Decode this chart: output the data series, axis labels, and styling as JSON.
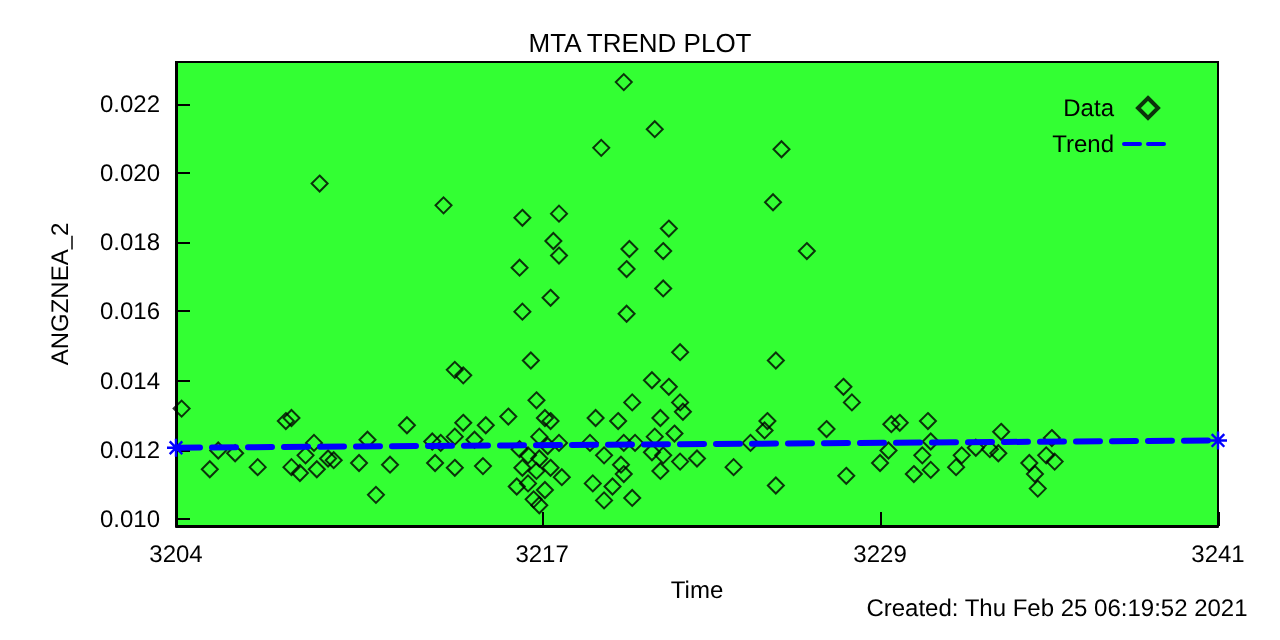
{
  "chart_data": {
    "type": "scatter",
    "title": "MTA TREND PLOT",
    "xlabel": "Time",
    "ylabel": "ANGZNEA_2",
    "annotations": [
      "Created: Thu Feb 25 06:19:52 2021"
    ],
    "xlim": [
      3204,
      3241
    ],
    "xticks": [
      3204,
      3217,
      3229,
      3241
    ],
    "ylim": [
      0.0098,
      0.0232
    ],
    "yticks": [
      {
        "value": 0.01,
        "label": "0.010"
      },
      {
        "value": 0.012,
        "label": "0.012"
      },
      {
        "value": 0.014,
        "label": "0.014"
      },
      {
        "value": 0.016,
        "label": "0.016"
      },
      {
        "value": 0.018,
        "label": "0.018"
      },
      {
        "value": 0.02,
        "label": "0.020"
      },
      {
        "value": 0.022,
        "label": "0.022"
      }
    ],
    "grid": false,
    "legend": "top right",
    "series": [
      {
        "name": "Data",
        "marker": "diamond",
        "color": "#000000",
        "x": [
          3204.2,
          3205.2,
          3205.5,
          3206.1,
          3206.9,
          3207.9,
          3208.1,
          3208.1,
          3208.4,
          3208.6,
          3208.9,
          3209.0,
          3209.1,
          3209.4,
          3209.6,
          3210.5,
          3210.8,
          3211.1,
          3211.6,
          3212.2,
          3213.1,
          3213.2,
          3213.5,
          3213.4,
          3213.9,
          3214.2,
          3214.2,
          3213.9,
          3213.9,
          3214.6,
          3214.9,
          3215.0,
          3215.8,
          3216.3,
          3217.6,
          3217.4,
          3217.6,
          3216.2,
          3217.3,
          3216.3,
          3216.6,
          3216.8,
          3219.9,
          3219.1,
          3221.0,
          3221.5,
          3220.1,
          3221.3,
          3220.0,
          3221.3,
          3220.0,
          3221.9,
          3220.9,
          3221.5,
          3220.2,
          3225.5,
          3225.2,
          3226.4,
          3225.3,
          3225.0,
          3224.9,
          3225.3,
          3223.8,
          3222.5,
          3224.4,
          3227.1,
          3217.1,
          3217.3,
          3216.9,
          3216.2,
          3216.5,
          3216.9,
          3217.2,
          3217.6,
          3216.3,
          3216.8,
          3217.3,
          3217.7,
          3216.1,
          3216.5,
          3217.1,
          3216.7,
          3216.9,
          3218.9,
          3219.7,
          3218.7,
          3219.2,
          3219.9,
          3219.8,
          3220.3,
          3218.8,
          3219.5,
          3219.2,
          3220.2,
          3219.9,
          3221.9,
          3221.2,
          3221.7,
          3221.0,
          3222.0,
          3221.3,
          3221.9,
          3221.2,
          3220.9,
          3227.7,
          3228.0,
          3227.8,
          3229.0,
          3229.3,
          3229.4,
          3229.7,
          3230.2,
          3230.5,
          3230.7,
          3230.8,
          3230.8,
          3231.7,
          3231.9,
          3232.4,
          3232.9,
          3233.2,
          3233.3,
          3234.3,
          3234.5,
          3234.6,
          3234.9,
          3235.1,
          3235.2
        ],
        "values": [
          0.01319,
          0.01144,
          0.01198,
          0.0119,
          0.0115,
          0.01283,
          0.01292,
          0.0115,
          0.01133,
          0.01184,
          0.0122,
          0.01144,
          0.01969,
          0.01175,
          0.0117,
          0.01162,
          0.01229,
          0.0107,
          0.01157,
          0.01271,
          0.01224,
          0.01162,
          0.01906,
          0.0122,
          0.01431,
          0.01415,
          0.01278,
          0.01148,
          0.01238,
          0.01229,
          0.01153,
          0.01271,
          0.01296,
          0.0187,
          0.01882,
          0.01803,
          0.01761,
          0.01726,
          0.01639,
          0.01599,
          0.01458,
          0.01343,
          0.02262,
          0.02072,
          0.02126,
          0.01839,
          0.0178,
          0.01774,
          0.01722,
          0.01666,
          0.01593,
          0.01482,
          0.01401,
          0.01382,
          0.01337,
          0.02068,
          0.01915,
          0.01774,
          0.01458,
          0.01283,
          0.01256,
          0.01097,
          0.0115,
          0.01175,
          0.0122,
          0.0126,
          0.01292,
          0.01283,
          0.01238,
          0.01202,
          0.01184,
          0.01175,
          0.01211,
          0.0122,
          0.01148,
          0.01139,
          0.01148,
          0.01121,
          0.01094,
          0.01103,
          0.01084,
          0.01057,
          0.0104,
          0.01292,
          0.01283,
          0.0122,
          0.01184,
          0.0122,
          0.01157,
          0.0122,
          0.01103,
          0.01094,
          0.01054,
          0.01061,
          0.0113,
          0.01337,
          0.01292,
          0.01247,
          0.01238,
          0.0131,
          0.01184,
          0.01166,
          0.01139,
          0.01193,
          0.01382,
          0.01337,
          0.01125,
          0.01162,
          0.01198,
          0.01274,
          0.01278,
          0.0113,
          0.01184,
          0.01283,
          0.01224,
          0.01142,
          0.0115,
          0.01184,
          0.01206,
          0.01202,
          0.0119,
          0.01252,
          0.01162,
          0.0113,
          0.01088,
          0.01184,
          0.01234,
          0.01166
        ]
      },
      {
        "name": "Trend",
        "type": "line",
        "marker": "cross",
        "line_style": "dashed",
        "color": "#0000ff",
        "x": [
          3204,
          3241
        ],
        "values": [
          0.01206,
          0.01227
        ]
      }
    ]
  }
}
